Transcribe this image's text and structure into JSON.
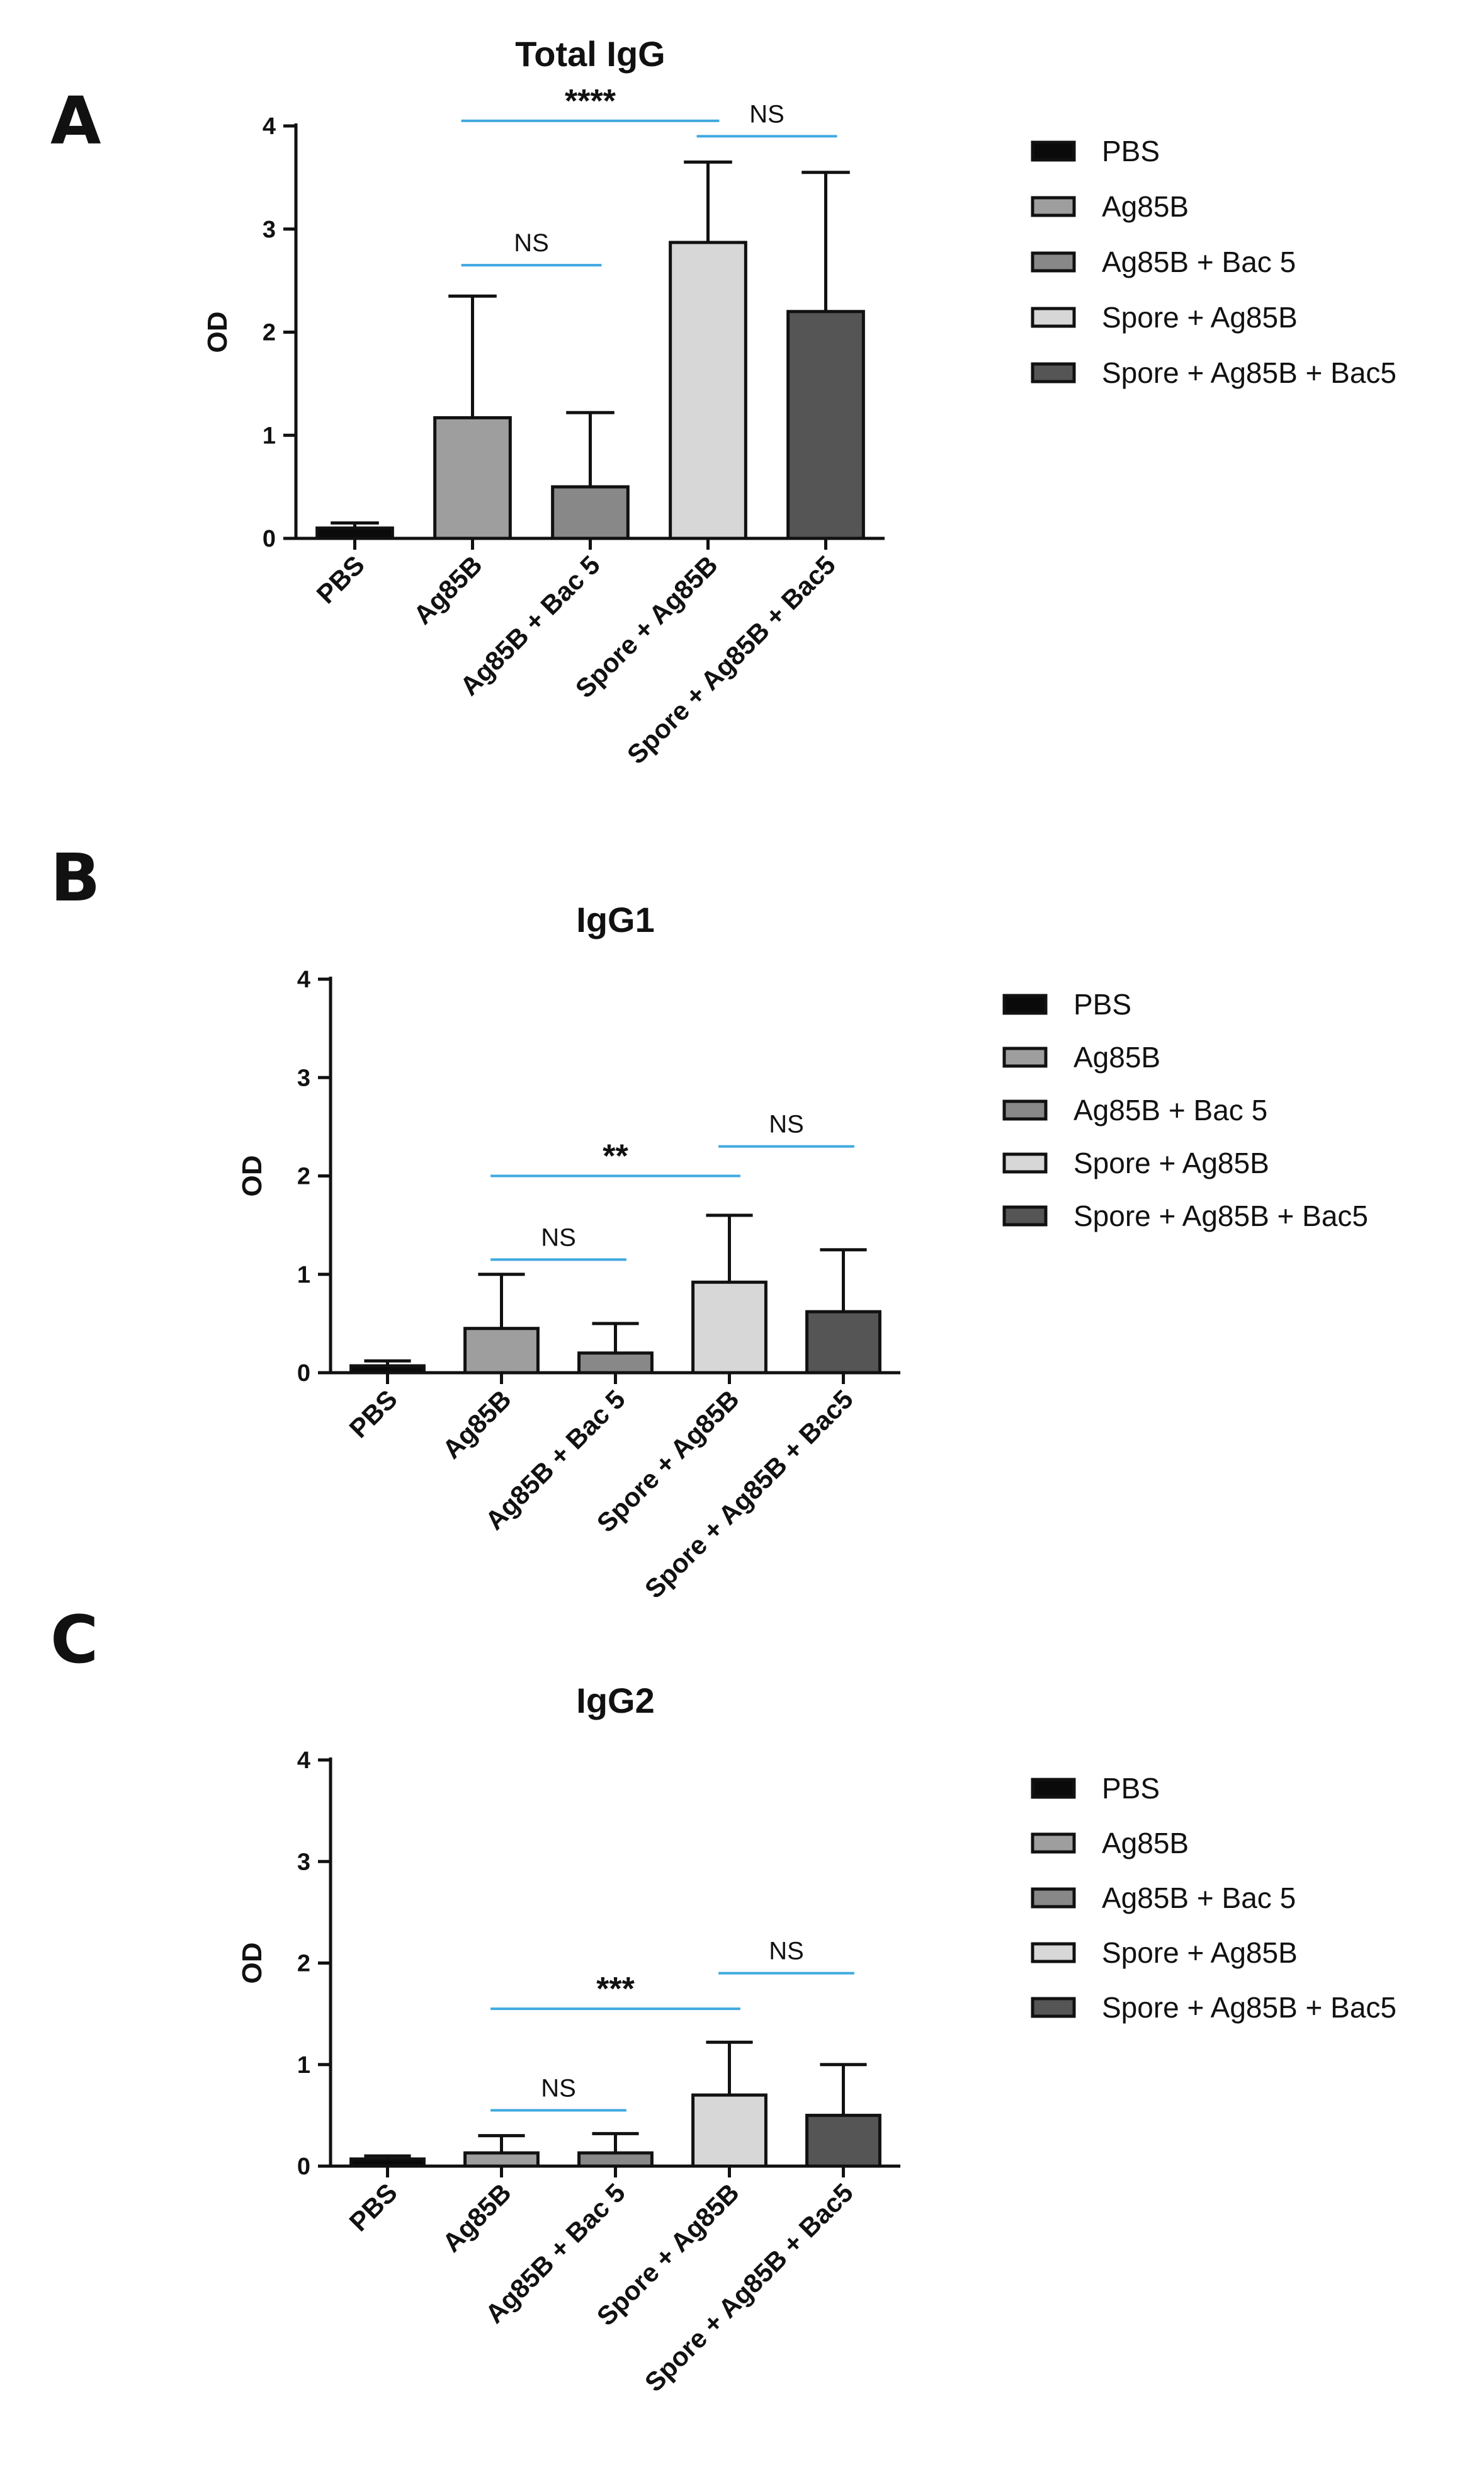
{
  "figure": {
    "colors": {
      "PBS": "#0a0a0a",
      "Ag85B": "#9e9e9e",
      "Ag85B + Bac 5": "#888888",
      "Spore + Ag85B": "#d7d7d7",
      "Spore + Ag85B + Bac5": "#555555",
      "significance_line": "#3fa9e0",
      "axis": "#111111"
    }
  },
  "chart_data": [
    {
      "panel": "A",
      "type": "bar",
      "title": "Total IgG",
      "xlabel": "",
      "ylabel": "OD",
      "ylim": [
        0,
        4
      ],
      "yticks": [
        "0",
        "1",
        "2",
        "3",
        "4"
      ],
      "categories": [
        "PBS",
        "Ag85B",
        "Ag85B + Bac 5",
        "Spore + Ag85B",
        "Spore + Ag85B + Bac5"
      ],
      "values": [
        0.1,
        1.17,
        0.5,
        2.87,
        2.2
      ],
      "error_upper": [
        0.15,
        2.35,
        1.22,
        3.65,
        3.55
      ],
      "legend": [
        "PBS",
        "Ag85B",
        "Ag85B + Bac 5",
        "Spore + Ag85B",
        "Spore + Ag85B + Bac5"
      ],
      "legend_position": "right",
      "significance": [
        {
          "from": 1,
          "to": 3,
          "label": "****",
          "level": 4.05
        },
        {
          "from": 3,
          "to": 4,
          "label": "NS",
          "level": 3.9
        },
        {
          "from": 1,
          "to": 2,
          "label": "NS",
          "level": 2.65
        }
      ]
    },
    {
      "panel": "B",
      "type": "bar",
      "title": "IgG1",
      "xlabel": "",
      "ylabel": "OD",
      "ylim": [
        0,
        4
      ],
      "yticks": [
        "0",
        "1",
        "2",
        "3",
        "4"
      ],
      "categories": [
        "PBS",
        "Ag85B",
        "Ag85B + Bac 5",
        "Spore + Ag85B",
        "Spore + Ag85B + Bac5"
      ],
      "values": [
        0.07,
        0.45,
        0.2,
        0.92,
        0.62
      ],
      "error_upper": [
        0.12,
        1.0,
        0.5,
        1.6,
        1.25
      ],
      "legend": [
        "PBS",
        "Ag85B",
        "Ag85B + Bac 5",
        "Spore + Ag85B",
        "Spore + Ag85B + Bac5"
      ],
      "legend_position": "right",
      "significance": [
        {
          "from": 1,
          "to": 3,
          "label": "**",
          "level": 2.0
        },
        {
          "from": 3,
          "to": 4,
          "label": "NS",
          "level": 2.3
        },
        {
          "from": 1,
          "to": 2,
          "label": "NS",
          "level": 1.15
        }
      ]
    },
    {
      "panel": "C",
      "type": "bar",
      "title": "IgG2",
      "xlabel": "",
      "ylabel": "OD",
      "ylim": [
        0,
        4
      ],
      "yticks": [
        "0",
        "1",
        "2",
        "3",
        "4"
      ],
      "categories": [
        "PBS",
        "Ag85B",
        "Ag85B + Bac 5",
        "Spore + Ag85B",
        "Spore + Ag85B + Bac5"
      ],
      "values": [
        0.07,
        0.13,
        0.13,
        0.7,
        0.5
      ],
      "error_upper": [
        0.1,
        0.3,
        0.32,
        1.22,
        1.0
      ],
      "legend": [
        "PBS",
        "Ag85B",
        "Ag85B + Bac 5",
        "Spore + Ag85B",
        "Spore + Ag85B + Bac5"
      ],
      "legend_position": "right",
      "significance": [
        {
          "from": 1,
          "to": 3,
          "label": "***",
          "level": 1.55
        },
        {
          "from": 3,
          "to": 4,
          "label": "NS",
          "level": 1.9
        },
        {
          "from": 1,
          "to": 2,
          "label": "NS",
          "level": 0.55
        }
      ]
    }
  ]
}
